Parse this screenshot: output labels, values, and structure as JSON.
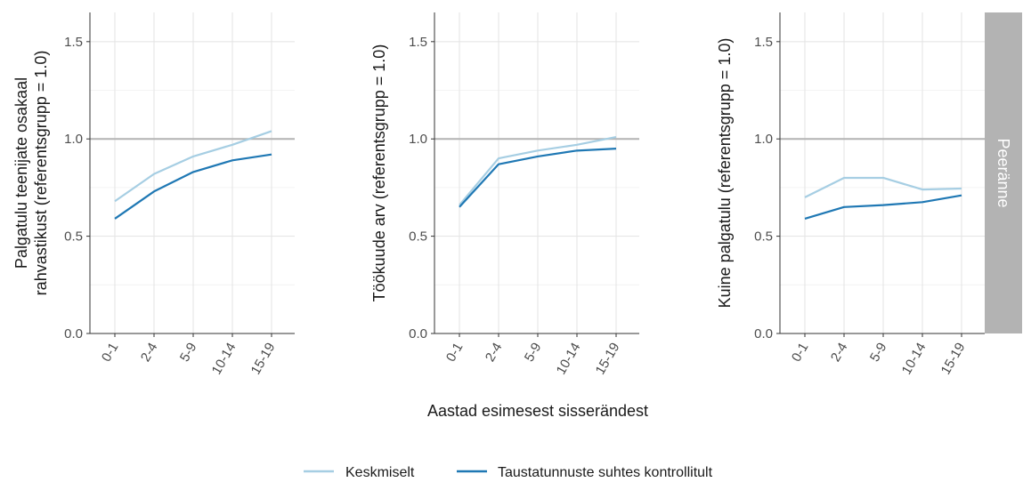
{
  "chart_data": {
    "type": "line",
    "strip_label": "Peeränne",
    "xlabel": "Aastad esimesest sisserändest",
    "categories": [
      "0-1",
      "2-4",
      "5-9",
      "10-14",
      "15-19"
    ],
    "ylim": [
      0,
      1.65
    ],
    "yticks": [
      "0.0",
      "0.5",
      "1.0",
      "1.5"
    ],
    "reference_line": 1.0,
    "grid": true,
    "legend_position": "bottom",
    "legend": [
      {
        "name": "Keskmiselt",
        "color": "#a6cee3"
      },
      {
        "name": "Taustatunnuste suhtes kontrollitult",
        "color": "#1f78b4"
      }
    ],
    "panels": [
      {
        "ylabel_lines": [
          "Palgatulu teenijate osakaal",
          "rahvastikust (referentsgrupp = 1.0)"
        ],
        "series": [
          {
            "name": "Keskmiselt",
            "values": [
              0.68,
              0.82,
              0.91,
              0.97,
              1.04
            ]
          },
          {
            "name": "Taustatunnuste suhtes kontrollitult",
            "values": [
              0.59,
              0.73,
              0.83,
              0.89,
              0.92
            ]
          }
        ]
      },
      {
        "ylabel_lines": [
          "Töökuude arv (referentsgrupp = 1.0)"
        ],
        "series": [
          {
            "name": "Keskmiselt",
            "values": [
              0.66,
              0.9,
              0.94,
              0.97,
              1.01
            ]
          },
          {
            "name": "Taustatunnuste suhtes kontrollitult",
            "values": [
              0.65,
              0.87,
              0.91,
              0.94,
              0.95
            ]
          }
        ]
      },
      {
        "ylabel_lines": [
          "Kuine palgatulu (referentsgrupp = 1.0)"
        ],
        "series": [
          {
            "name": "Keskmiselt",
            "values": [
              0.7,
              0.8,
              0.8,
              0.74,
              0.745
            ]
          },
          {
            "name": "Taustatunnuste suhtes kontrollitult",
            "values": [
              0.59,
              0.65,
              0.66,
              0.675,
              0.71
            ]
          }
        ]
      }
    ]
  }
}
